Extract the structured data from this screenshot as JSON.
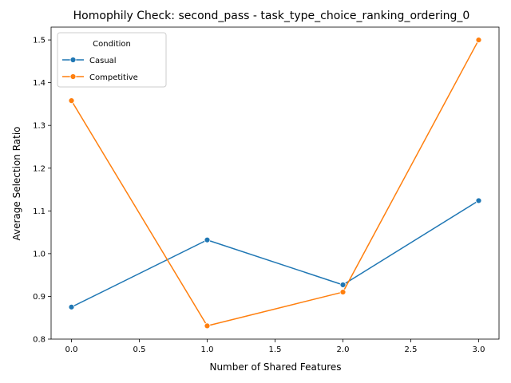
{
  "chart_data": {
    "type": "line",
    "title": "Homophily Check: second_pass - task_type_choice_ranking_ordering_0",
    "xlabel": "Number of Shared Features",
    "ylabel": "Average Selection Ratio",
    "xlim": [
      -0.15,
      3.15
    ],
    "ylim": [
      0.8,
      1.53
    ],
    "x_ticks": [
      0.0,
      0.5,
      1.0,
      1.5,
      2.0,
      2.5,
      3.0
    ],
    "x_tick_labels": [
      "0.0",
      "0.5",
      "1.0",
      "1.5",
      "2.0",
      "2.5",
      "3.0"
    ],
    "y_ticks": [
      0.8,
      0.9,
      1.0,
      1.1,
      1.2,
      1.3,
      1.4,
      1.5
    ],
    "y_tick_labels": [
      "0.8",
      "0.9",
      "1.0",
      "1.1",
      "1.2",
      "1.3",
      "1.4",
      "1.5"
    ],
    "grid": false,
    "legend": {
      "title": "Condition",
      "placement": "upper-left"
    },
    "x": [
      0,
      1,
      2,
      3
    ],
    "series": [
      {
        "name": "Casual",
        "values": [
          0.875,
          1.032,
          0.927,
          1.124
        ],
        "color": "#1f77b4"
      },
      {
        "name": "Competitive",
        "values": [
          1.358,
          0.831,
          0.91,
          1.5
        ],
        "color": "#ff7f0e"
      }
    ]
  }
}
